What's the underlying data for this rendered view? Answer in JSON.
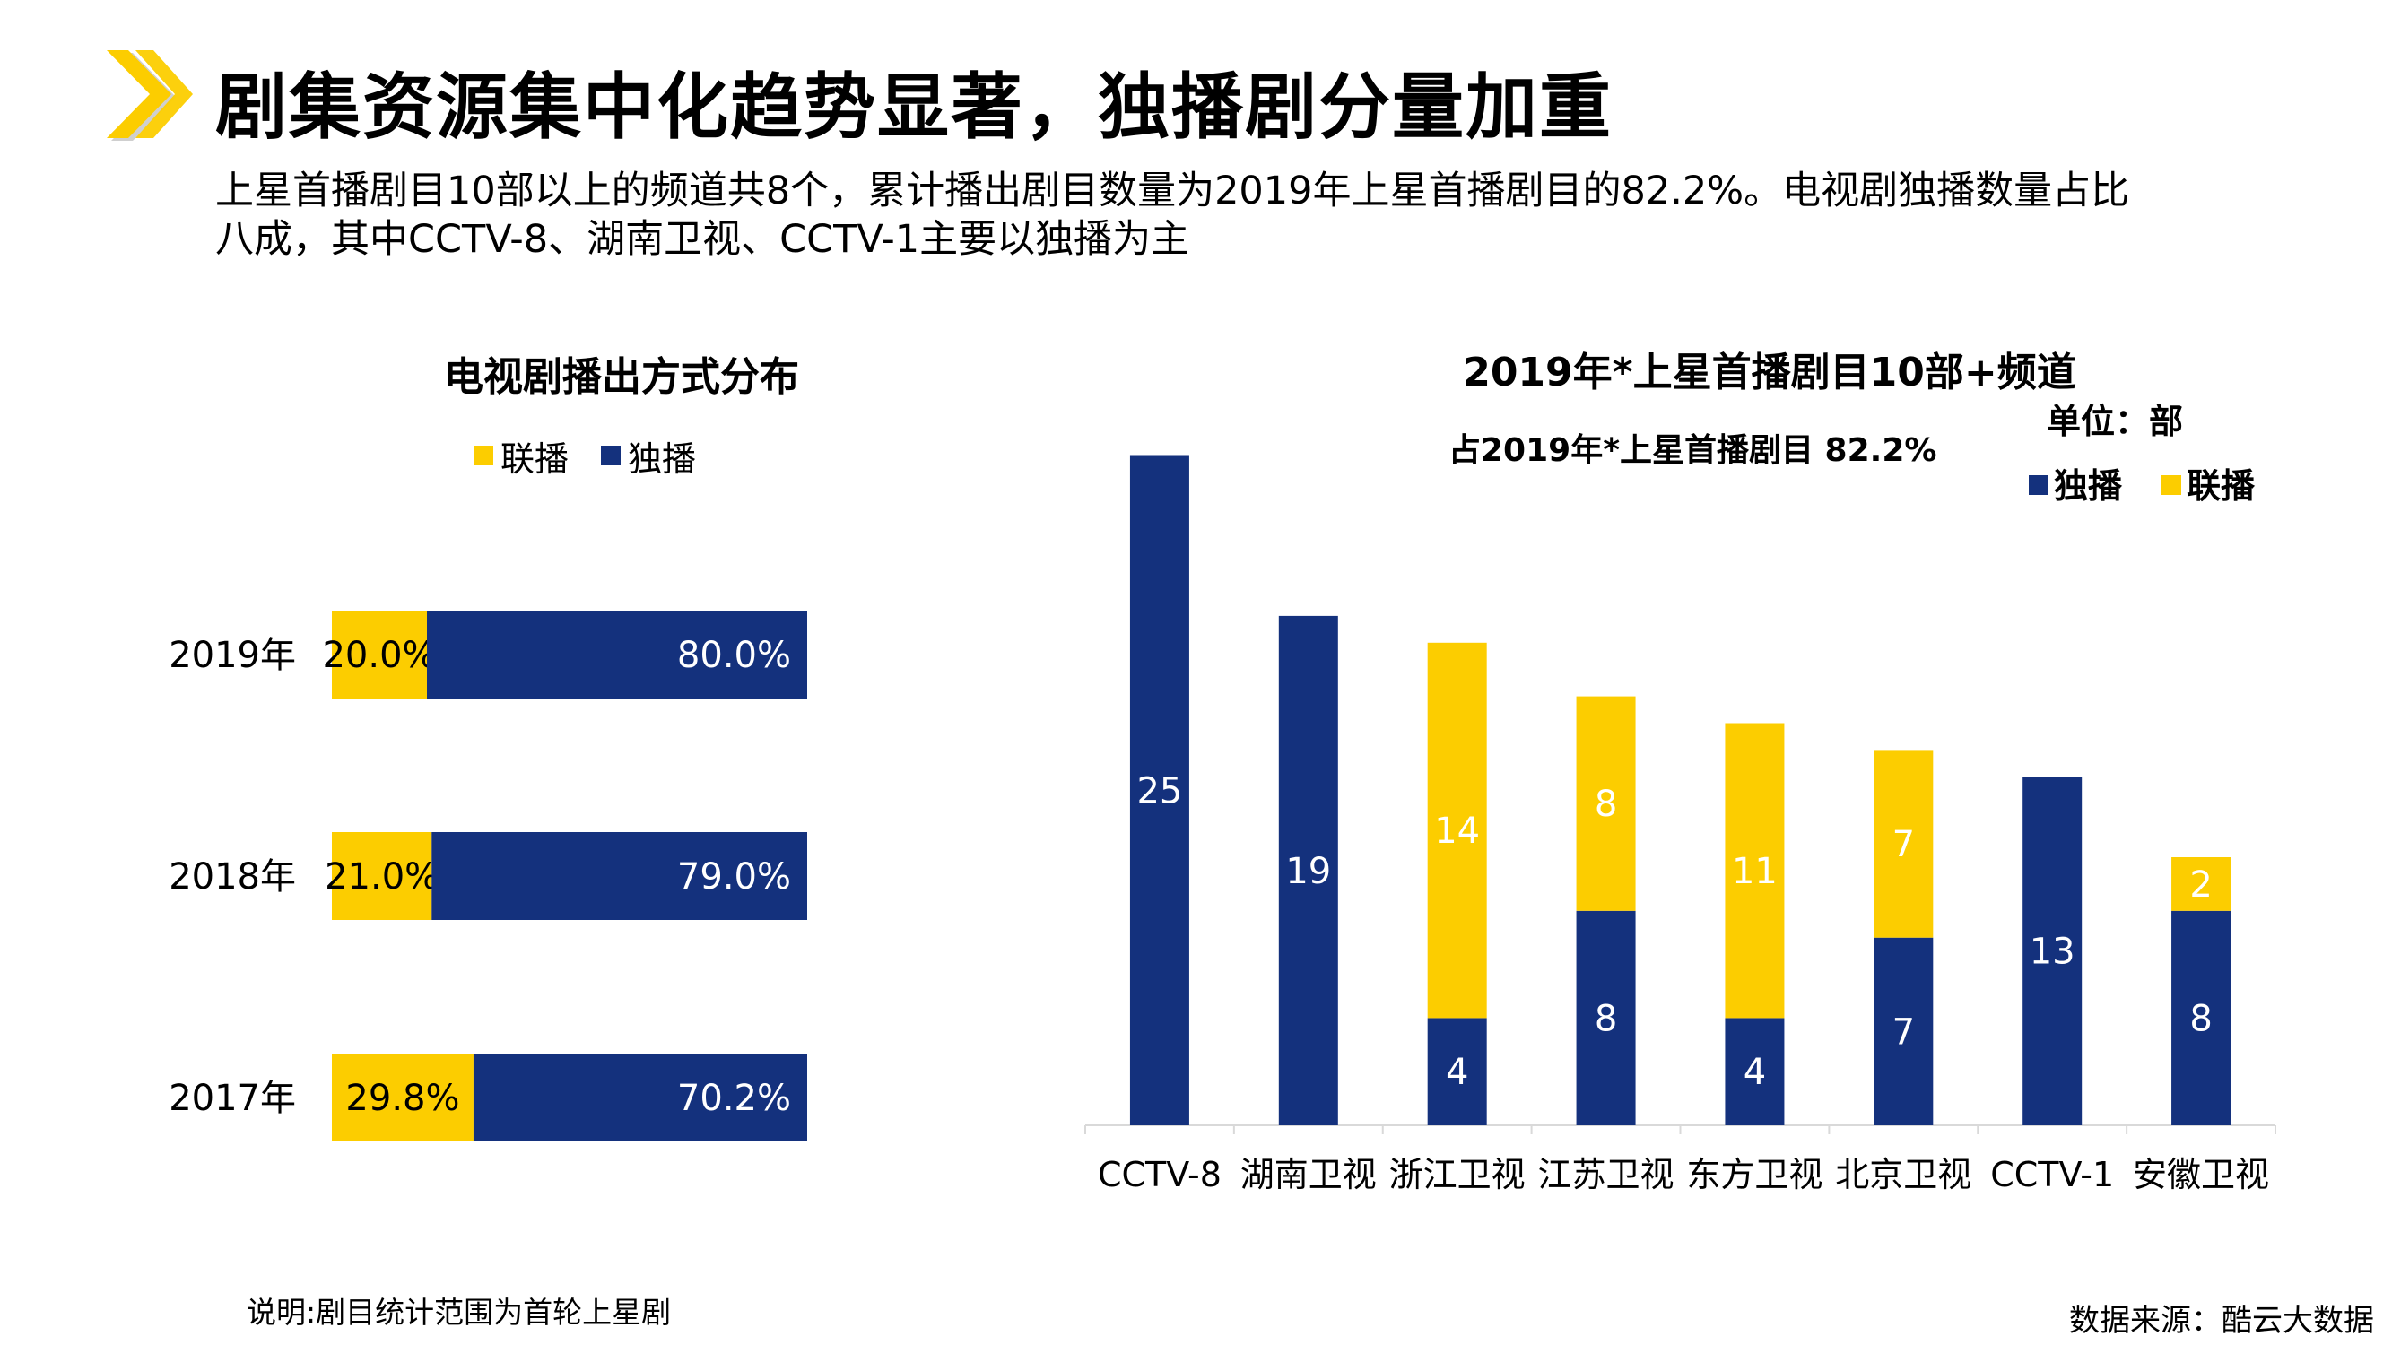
{
  "page": {
    "title": "剧集资源集中化趋势显著，独播剧分量加重",
    "subtitle_line1": "上星首播剧目10部以上的频道共8个，累计播出剧目数量为2019年上星首播剧目的82.2%。电视剧独播数量占比",
    "subtitle_line2": "八成，其中CCTV-8、湖南卫视、CCTV-1主要以独播为主",
    "note": "说明:剧目统计范围为首轮上星剧",
    "source": "数据来源：酷云大数据"
  },
  "colors": {
    "navy": "#14317d",
    "yellow": "#fccd00",
    "axis": "#d9d9d9"
  },
  "chart_data": [
    {
      "type": "bar",
      "orientation": "horizontal",
      "stacked": "percent",
      "title": "电视剧播出方式分布",
      "legend": [
        "联播",
        "独播"
      ],
      "categories": [
        "2019年",
        "2018年",
        "2017年"
      ],
      "series": [
        {
          "name": "联播",
          "color": "#fccd00",
          "values": [
            20.0,
            21.0,
            29.8
          ],
          "labels": [
            "20.0%",
            "21.0%",
            "29.8%"
          ]
        },
        {
          "name": "独播",
          "color": "#14317d",
          "values": [
            80.0,
            79.0,
            70.2
          ],
          "labels": [
            "80.0%",
            "79.0%",
            "70.2%"
          ]
        }
      ]
    },
    {
      "type": "bar",
      "orientation": "vertical",
      "stacked": true,
      "title": "2019年*上星首播剧目10部+频道",
      "annotation": "占2019年*上星首播剧目 82.2%",
      "unit_label": "单位：部",
      "legend": [
        "独播",
        "联播"
      ],
      "categories": [
        "CCTV-8",
        "湖南卫视",
        "浙江卫视",
        "江苏卫视",
        "东方卫视",
        "北京卫视",
        "CCTV-1",
        "安徽卫视"
      ],
      "series": [
        {
          "name": "独播",
          "color": "#14317d",
          "values": [
            25,
            19,
            4,
            8,
            4,
            7,
            13,
            8
          ]
        },
        {
          "name": "联播",
          "color": "#fccd00",
          "values": [
            0,
            0,
            14,
            8,
            11,
            7,
            0,
            2
          ]
        }
      ],
      "ylim": [
        0,
        25
      ]
    }
  ]
}
